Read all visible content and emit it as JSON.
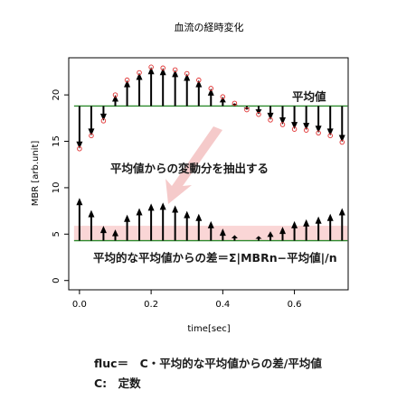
{
  "chart_data": {
    "type": "line",
    "title": "血流の経時変化",
    "xlabel": "time[sec]",
    "ylabel": "MBR [arb.unit]",
    "xlim": [
      -0.03,
      0.75
    ],
    "ylim": [
      -1,
      24
    ],
    "x_ticks": [
      0.0,
      0.2,
      0.4,
      0.6
    ],
    "x_tick_labels": [
      "0.0",
      "0.2",
      "0.4",
      "0.6"
    ],
    "y_ticks": [
      0,
      5,
      10,
      15,
      20
    ],
    "y_tick_labels": [
      "0",
      "5",
      "10",
      "15",
      "20"
    ],
    "grid": false,
    "mean_label": "平均値",
    "mean_value": 18.8,
    "baseline_value": 4.3,
    "series": [
      {
        "x": [
          0.0,
          0.033,
          0.067,
          0.1,
          0.133,
          0.167,
          0.2,
          0.233,
          0.267,
          0.3,
          0.333,
          0.367,
          0.4,
          0.433,
          0.467,
          0.5,
          0.533,
          0.567,
          0.6,
          0.633,
          0.667,
          0.7,
          0.733
        ],
        "values": [
          14.2,
          15.6,
          17.2,
          20.0,
          21.6,
          22.4,
          23.0,
          22.9,
          22.7,
          22.3,
          21.6,
          20.7,
          19.8,
          19.1,
          18.4,
          17.9,
          17.3,
          16.8,
          16.3,
          16.2,
          15.9,
          15.6,
          14.9
        ]
      },
      {
        "x": [
          0.0,
          0.033,
          0.067,
          0.1,
          0.133,
          0.167,
          0.2,
          0.233,
          0.267,
          0.3,
          0.333,
          0.367,
          0.4,
          0.433,
          0.467,
          0.5,
          0.533,
          0.567,
          0.6,
          0.633,
          0.667,
          0.7,
          0.733
        ],
        "values": [
          8.9,
          7.6,
          5.9,
          5.5,
          7.1,
          7.8,
          8.3,
          8.4,
          8.1,
          7.5,
          7.2,
          6.4,
          5.6,
          4.9,
          4.4,
          4.8,
          5.3,
          5.8,
          6.4,
          6.6,
          6.9,
          7.2,
          7.8
        ]
      }
    ],
    "annotations": {
      "extract_text": "平均値からの変動分を抽出する",
      "formula_text": "平均的な平均値からの差＝Σ|MBRn−平均値|/n"
    }
  },
  "notes": {
    "line1": "fluc＝　C・平均的な平均値からの差/平均値",
    "line2": "C:　定数"
  },
  "colors": {
    "mean_line": "#2d8a2d",
    "marker": "#e03030",
    "arrow": "#000000",
    "band": "#f5b5b5",
    "big_arrow": "#f4c4c4"
  }
}
